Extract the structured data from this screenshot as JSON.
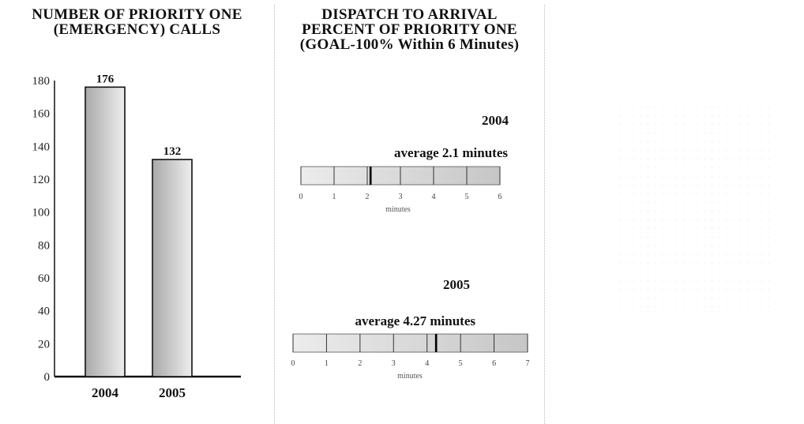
{
  "chart_data": [
    {
      "type": "bar",
      "title": [
        "NUMBER OF PRIORITY ONE",
        "(EMERGENCY) CALLS"
      ],
      "categories": [
        "2004",
        "2005"
      ],
      "values": [
        176,
        132
      ],
      "data_labels": [
        "176",
        "132"
      ],
      "ylim": [
        0,
        180
      ],
      "yticks": [
        0,
        20,
        40,
        60,
        80,
        100,
        120,
        140,
        160,
        180
      ],
      "xlabel": "",
      "ylabel": "",
      "grid": false,
      "colors": {
        "bar_light": "#eeeeee",
        "bar_dark": "#a9a9a9",
        "stroke": "#111111"
      }
    },
    {
      "type": "bar",
      "orientation": "horizontal",
      "title": [
        "DISPATCH TO ARRIVAL",
        "PERCENT OF PRIORITY ONE",
        "(GOAL-100% Within 6 Minutes)"
      ],
      "series": [
        {
          "name": "2004",
          "label": "average 2.1 minutes",
          "value": 2.1,
          "xlim": [
            0,
            6
          ],
          "ticks": [
            0,
            1,
            2,
            3,
            4,
            5,
            6
          ],
          "xlabel": "minutes"
        },
        {
          "name": "2005",
          "label": "average 4.27 minutes",
          "value": 4.27,
          "xlim": [
            0,
            7
          ],
          "ticks": [
            0,
            1,
            2,
            3,
            4,
            5,
            6,
            7
          ],
          "xlabel": "minutes"
        }
      ]
    }
  ]
}
